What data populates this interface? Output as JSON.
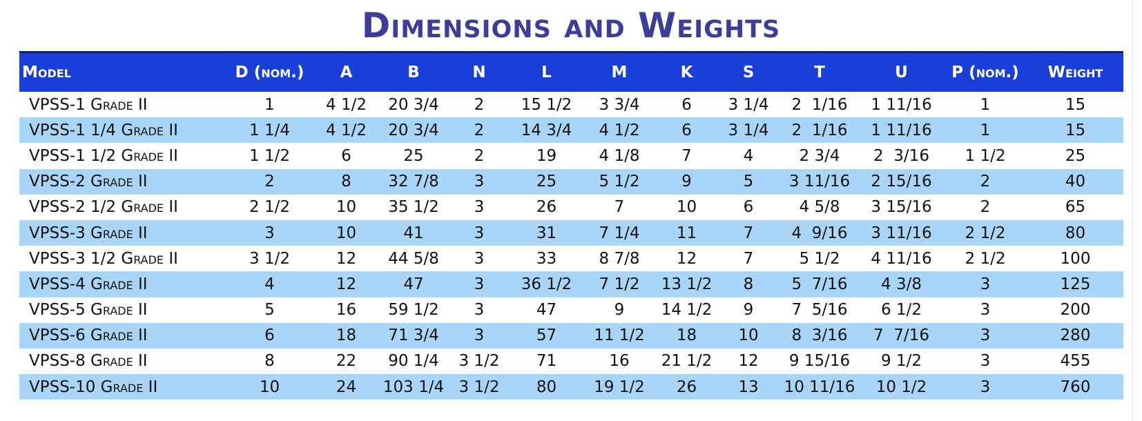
{
  "title": "Dimensions and Weights",
  "table": {
    "headers": [
      "Model",
      "D (nom.)",
      "A",
      "B",
      "N",
      "L",
      "M",
      "K",
      "S",
      "T",
      "U",
      "P (nom.)",
      "Weight"
    ],
    "rows": [
      [
        "VPSS-1 Grade II",
        "1",
        "4 1/2",
        "20 3/4",
        "2",
        "15 1/2",
        "3 3/4",
        "6",
        "3 1/4",
        "2  1/16",
        "1 11/16",
        "1",
        "15"
      ],
      [
        "VPSS-1 1/4 Grade II",
        "1 1/4",
        "4 1/2",
        "20 3/4",
        "2",
        "14 3/4",
        "4 1/2",
        "6",
        "3 1/4",
        "2  1/16",
        "1 11/16",
        "1",
        "15"
      ],
      [
        "VPSS-1 1/2 Grade II",
        "1 1/2",
        "6",
        "25",
        "2",
        "19",
        "4 1/8",
        "7",
        "4",
        "2 3/4",
        "2  3/16",
        "1 1/2",
        "25"
      ],
      [
        "VPSS-2 Grade II",
        "2",
        "8",
        "32 7/8",
        "3",
        "25",
        "5 1/2",
        "9",
        "5",
        "3 11/16",
        "2 15/16",
        "2",
        "40"
      ],
      [
        "VPSS-2 1/2 Grade II",
        "2 1/2",
        "10",
        "35 1/2",
        "3",
        "26",
        "7",
        "10",
        "6",
        "4 5/8",
        "3 15/16",
        "2",
        "65"
      ],
      [
        "VPSS-3 Grade II",
        "3",
        "10",
        "41",
        "3",
        "31",
        "7 1/4",
        "11",
        "7",
        "4  9/16",
        "3 11/16",
        "2 1/2",
        "80"
      ],
      [
        "VPSS-3 1/2 Grade II",
        "3 1/2",
        "12",
        "44 5/8",
        "3",
        "33",
        "8 7/8",
        "12",
        "7",
        "5 1/2",
        "4 11/16",
        "2 1/2",
        "100"
      ],
      [
        "VPSS-4 Grade II",
        "4",
        "12",
        "47",
        "3",
        "36 1/2",
        "7 1/2",
        "13 1/2",
        "8",
        "5  7/16",
        "4 3/8",
        "3",
        "125"
      ],
      [
        "VPSS-5 Grade II",
        "5",
        "16",
        "59 1/2",
        "3",
        "47",
        "9",
        "14 1/2",
        "9",
        "7  5/16",
        "6 1/2",
        "3",
        "200"
      ],
      [
        "VPSS-6 Grade II",
        "6",
        "18",
        "71 3/4",
        "3",
        "57",
        "11 1/2",
        "18",
        "10",
        "8  3/16",
        "7  7/16",
        "3",
        "280"
      ],
      [
        "VPSS-8 Grade II",
        "8",
        "22",
        "90 1/4",
        "3 1/2",
        "71",
        "16",
        "21 1/2",
        "12",
        "9 15/16",
        "9 1/2",
        "3",
        "455"
      ],
      [
        "VPSS-10 Grade II",
        "10",
        "24",
        "103 1/4",
        "3 1/2",
        "80",
        "19 1/2",
        "26",
        "13",
        "10 11/16",
        "10 1/2",
        "3",
        "760"
      ]
    ]
  }
}
